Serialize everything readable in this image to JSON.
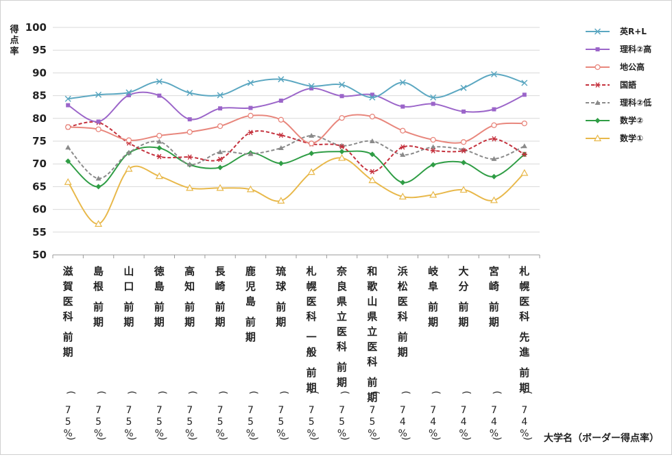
{
  "chart_data": {
    "type": "line",
    "ylabel": "得点率",
    "xlabel": "大学名（ボーダー得点率）",
    "ylim": [
      50,
      100
    ],
    "yticks": [
      100,
      95,
      90,
      85,
      80,
      75,
      70,
      65,
      60,
      55,
      50
    ],
    "grid": "y-only",
    "legend_position": "right",
    "categories": [
      {
        "lines": [
          "滋賀医科",
          "前期"
        ],
        "border": "(75%)"
      },
      {
        "lines": [
          "島根",
          "前期"
        ],
        "border": "(75%)"
      },
      {
        "lines": [
          "山口",
          "前期"
        ],
        "border": "(75%)"
      },
      {
        "lines": [
          "徳島",
          "前期"
        ],
        "border": "(75%)"
      },
      {
        "lines": [
          "高知",
          "前期"
        ],
        "border": "(75%)"
      },
      {
        "lines": [
          "長崎",
          "前期"
        ],
        "border": "(75%)"
      },
      {
        "lines": [
          "鹿児島",
          "前期"
        ],
        "border": "(75%)"
      },
      {
        "lines": [
          "琉球",
          "前期"
        ],
        "border": "(75%)"
      },
      {
        "lines": [
          "札幌医科",
          "一般",
          "前期"
        ],
        "border": "(75%)"
      },
      {
        "lines": [
          "奈良県立医科",
          "前期"
        ],
        "border": "(75%)"
      },
      {
        "lines": [
          "和歌山県立医科",
          "前期"
        ],
        "border": "(75%)"
      },
      {
        "lines": [
          "浜松医科",
          "前期"
        ],
        "border": "(74%)"
      },
      {
        "lines": [
          "岐阜",
          "前期"
        ],
        "border": "(74%)"
      },
      {
        "lines": [
          "大分",
          "前期"
        ],
        "border": "(74%)"
      },
      {
        "lines": [
          "宮崎",
          "前期"
        ],
        "border": "(74%)"
      },
      {
        "lines": [
          "札幌医科",
          "先進",
          "前期"
        ],
        "border": "(74%)"
      }
    ],
    "series": [
      {
        "name": "英R+L",
        "color": "#5ba7c1",
        "marker": "x",
        "dashed": false,
        "values": [
          84.3,
          85.2,
          85.7,
          88.1,
          85.6,
          85.1,
          87.8,
          88.6,
          87.1,
          87.4,
          84.6,
          87.9,
          84.6,
          86.7,
          89.7,
          87.8
        ]
      },
      {
        "name": "理科②高",
        "color": "#9b65c9",
        "marker": "square",
        "dashed": false,
        "values": [
          82.9,
          79.3,
          85.1,
          85.0,
          79.8,
          82.2,
          82.3,
          83.9,
          86.6,
          84.9,
          85.2,
          82.6,
          83.2,
          81.5,
          82.0,
          85.2
        ]
      },
      {
        "name": "地公高",
        "color": "#e8867c",
        "marker": "circle",
        "dashed": false,
        "values": [
          78.1,
          77.6,
          75.2,
          76.2,
          77.0,
          78.3,
          80.6,
          79.7,
          74.5,
          80.1,
          80.4,
          77.3,
          75.3,
          74.8,
          78.5,
          78.9
        ]
      },
      {
        "name": "国語",
        "color": "#c4303c",
        "marker": "asterisk",
        "dashed": true,
        "values": [
          78.1,
          79.1,
          74.6,
          71.6,
          71.5,
          71.0,
          76.9,
          76.3,
          74.4,
          73.8,
          68.3,
          73.7,
          72.9,
          72.9,
          75.5,
          72.1
        ]
      },
      {
        "name": "理科②低",
        "color": "#8a8a8a",
        "marker": "triangle",
        "dashed": true,
        "values": [
          73.6,
          66.8,
          72.5,
          74.9,
          69.9,
          72.6,
          72.2,
          73.5,
          76.2,
          74.0,
          75.0,
          72.0,
          73.7,
          73.1,
          71.1,
          73.9
        ]
      },
      {
        "name": "数学②",
        "color": "#2f9d45",
        "marker": "diamond",
        "dashed": false,
        "values": [
          70.6,
          65.0,
          72.4,
          73.5,
          69.8,
          69.2,
          72.4,
          70.1,
          72.3,
          72.7,
          72.1,
          65.9,
          69.8,
          70.3,
          67.2,
          72.1
        ]
      },
      {
        "name": "数学①",
        "color": "#e8b84a",
        "marker": "open-triangle",
        "dashed": false,
        "values": [
          66.0,
          56.8,
          68.9,
          67.3,
          64.7,
          64.7,
          64.4,
          61.9,
          68.2,
          71.3,
          66.4,
          62.8,
          63.2,
          64.3,
          62.0,
          68.0
        ]
      }
    ]
  }
}
